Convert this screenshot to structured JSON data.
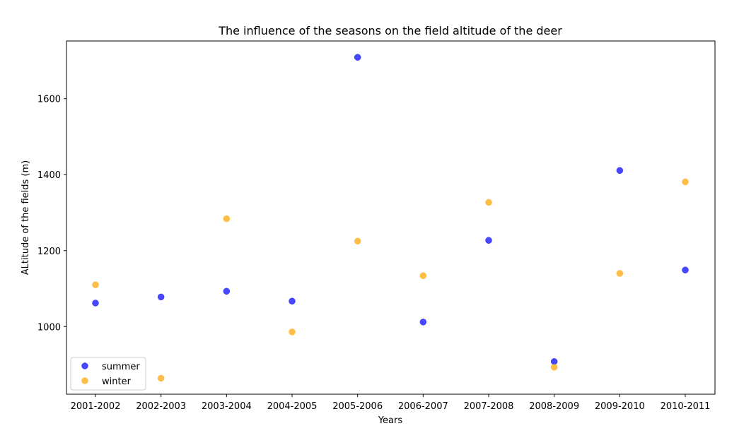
{
  "chart_data": {
    "type": "scatter",
    "title": "The influence of the seasons on the field altitude of the deer",
    "xlabel": "Years",
    "ylabel": "ALtitude of the fields (m)",
    "categories": [
      "2001-2002",
      "2002-2003",
      "2003-2004",
      "2004-2005",
      "2005-2006",
      "2006-2007",
      "2007-2008",
      "2008-2009",
      "2009-2010",
      "2010-2011"
    ],
    "ylim": [
      822,
      1752
    ],
    "yticks": [
      1000,
      1200,
      1400,
      1600
    ],
    "grid": false,
    "legend_position": "lower-left",
    "series": [
      {
        "name": "summer",
        "color": "#0000ff",
        "values": [
          1062,
          1078,
          1093,
          1067,
          1709,
          1012,
          1227,
          908,
          1411,
          1149
        ]
      },
      {
        "name": "winter",
        "color": "#ffa500",
        "values": [
          1110,
          864,
          1284,
          986,
          1225,
          1134,
          1327,
          893,
          1140,
          1381
        ]
      }
    ]
  }
}
